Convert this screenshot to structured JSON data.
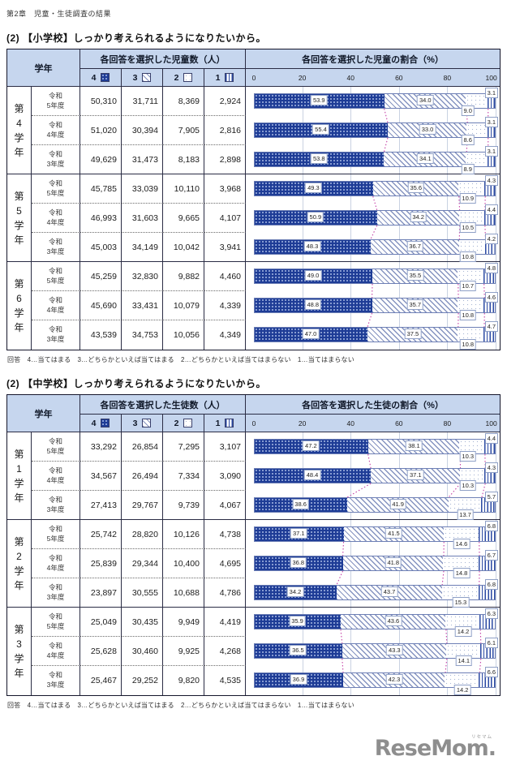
{
  "page": {
    "header": "第2章　児童・生徒調査の結果",
    "footnote": "回答　4…当てはまる　3…どちらかといえば当てはまる　2…どちらかといえば当てはまらない　1…当てはまらない",
    "logo": {
      "text": "ReseMom.",
      "ruby": "リセマム"
    }
  },
  "colors": {
    "header_bg": "#c6d6ee",
    "bar_navy": "#1e3c96",
    "connector_pink": "#c43fa6",
    "grid_line": "#c9d2e2",
    "table_border": "#15162b"
  },
  "axis_ticks": [
    "0",
    "20",
    "40",
    "60",
    "80",
    "100"
  ],
  "sections": [
    {
      "title": "(2) 【小学校】しっかり考えられるようになりたいから。",
      "grade_header": "学年",
      "count_header": "各回答を選択した児童数（人）",
      "pct_header": "各回答を選択した児童の割合（%）",
      "legend_values": [
        "4",
        "3",
        "2",
        "1"
      ],
      "groups": [
        {
          "grade": "第4学年",
          "rows": [
            {
              "year_lines": [
                "令和",
                "5年度"
              ],
              "counts": [
                "50,310",
                "31,711",
                "8,369",
                "2,924"
              ],
              "pcts": [
                53.9,
                34.0,
                9.0,
                3.1
              ]
            },
            {
              "year_lines": [
                "令和",
                "4年度"
              ],
              "counts": [
                "51,020",
                "30,394",
                "7,905",
                "2,816"
              ],
              "pcts": [
                55.4,
                33.0,
                8.6,
                3.1
              ]
            },
            {
              "year_lines": [
                "令和",
                "3年度"
              ],
              "counts": [
                "49,629",
                "31,473",
                "8,183",
                "2,898"
              ],
              "pcts": [
                53.8,
                34.1,
                8.9,
                3.1
              ]
            }
          ]
        },
        {
          "grade": "第5学年",
          "rows": [
            {
              "year_lines": [
                "令和",
                "5年度"
              ],
              "counts": [
                "45,785",
                "33,039",
                "10,110",
                "3,968"
              ],
              "pcts": [
                49.3,
                35.6,
                10.9,
                4.3
              ]
            },
            {
              "year_lines": [
                "令和",
                "4年度"
              ],
              "counts": [
                "46,993",
                "31,603",
                "9,665",
                "4,107"
              ],
              "pcts": [
                50.9,
                34.2,
                10.5,
                4.4
              ]
            },
            {
              "year_lines": [
                "令和",
                "3年度"
              ],
              "counts": [
                "45,003",
                "34,149",
                "10,042",
                "3,941"
              ],
              "pcts": [
                48.3,
                36.7,
                10.8,
                4.2
              ]
            }
          ]
        },
        {
          "grade": "第6学年",
          "rows": [
            {
              "year_lines": [
                "令和",
                "5年度"
              ],
              "counts": [
                "45,259",
                "32,830",
                "9,882",
                "4,460"
              ],
              "pcts": [
                49.0,
                35.5,
                10.7,
                4.8
              ]
            },
            {
              "year_lines": [
                "令和",
                "4年度"
              ],
              "counts": [
                "45,690",
                "33,431",
                "10,079",
                "4,339"
              ],
              "pcts": [
                48.8,
                35.7,
                10.8,
                4.6
              ]
            },
            {
              "year_lines": [
                "令和",
                "3年度"
              ],
              "counts": [
                "43,539",
                "34,753",
                "10,056",
                "4,349"
              ],
              "pcts": [
                47.0,
                37.5,
                10.8,
                4.7
              ]
            }
          ]
        }
      ]
    },
    {
      "title": "(2) 【中学校】しっかり考えられるようになりたいから。",
      "grade_header": "学年",
      "count_header": "各回答を選択した生徒数（人）",
      "pct_header": "各回答を選択した生徒の割合（%）",
      "legend_values": [
        "4",
        "3",
        "2",
        "1"
      ],
      "groups": [
        {
          "grade": "第1学年",
          "rows": [
            {
              "year_lines": [
                "令和",
                "5年度"
              ],
              "counts": [
                "33,292",
                "26,854",
                "7,295",
                "3,107"
              ],
              "pcts": [
                47.2,
                38.1,
                10.3,
                4.4
              ]
            },
            {
              "year_lines": [
                "令和",
                "4年度"
              ],
              "counts": [
                "34,567",
                "26,494",
                "7,334",
                "3,090"
              ],
              "pcts": [
                48.4,
                37.1,
                10.3,
                4.3
              ]
            },
            {
              "year_lines": [
                "令和",
                "3年度"
              ],
              "counts": [
                "27,413",
                "29,767",
                "9,739",
                "4,067"
              ],
              "pcts": [
                38.6,
                41.9,
                13.7,
                5.7
              ]
            }
          ]
        },
        {
          "grade": "第2学年",
          "rows": [
            {
              "year_lines": [
                "令和",
                "5年度"
              ],
              "counts": [
                "25,742",
                "28,820",
                "10,126",
                "4,738"
              ],
              "pcts": [
                37.1,
                41.5,
                14.6,
                6.8
              ]
            },
            {
              "year_lines": [
                "令和",
                "4年度"
              ],
              "counts": [
                "25,839",
                "29,344",
                "10,400",
                "4,695"
              ],
              "pcts": [
                36.8,
                41.8,
                14.8,
                6.7
              ]
            },
            {
              "year_lines": [
                "令和",
                "3年度"
              ],
              "counts": [
                "23,897",
                "30,555",
                "10,688",
                "4,786"
              ],
              "pcts": [
                34.2,
                43.7,
                15.3,
                6.8
              ]
            }
          ]
        },
        {
          "grade": "第3学年",
          "rows": [
            {
              "year_lines": [
                "令和",
                "5年度"
              ],
              "counts": [
                "25,049",
                "30,435",
                "9,949",
                "4,419"
              ],
              "pcts": [
                35.9,
                43.6,
                14.2,
                6.3
              ]
            },
            {
              "year_lines": [
                "令和",
                "4年度"
              ],
              "counts": [
                "25,628",
                "30,460",
                "9,925",
                "4,268"
              ],
              "pcts": [
                36.5,
                43.3,
                14.1,
                6.1
              ]
            },
            {
              "year_lines": [
                "令和",
                "3年度"
              ],
              "counts": [
                "25,467",
                "29,252",
                "9,820",
                "4,535"
              ],
              "pcts": [
                36.9,
                42.3,
                14.2,
                6.6
              ]
            }
          ]
        }
      ]
    }
  ],
  "chart_data": [
    {
      "type": "bar",
      "subtype": "horizontal-stacked",
      "title": "各回答を選択した児童の割合（%）",
      "xlabel": "割合（%）",
      "ylabel": "学年・年度",
      "xlim": [
        0,
        100
      ],
      "x_ticks": [
        0,
        20,
        40,
        60,
        80,
        100
      ],
      "legend": [
        "4…当てはまる",
        "3…どちらかといえば当てはまる",
        "2…どちらかといえば当てはまらない",
        "1…当てはまらない"
      ],
      "categories": [
        "第4学年 令和5年度",
        "第4学年 令和4年度",
        "第4学年 令和3年度",
        "第5学年 令和5年度",
        "第5学年 令和4年度",
        "第5学年 令和3年度",
        "第6学年 令和5年度",
        "第6学年 令和4年度",
        "第6学年 令和3年度"
      ],
      "series": [
        {
          "name": "4",
          "values": [
            53.9,
            55.4,
            53.8,
            49.3,
            50.9,
            48.3,
            49.0,
            48.8,
            47.0
          ]
        },
        {
          "name": "3",
          "values": [
            34.0,
            33.0,
            34.1,
            35.6,
            34.2,
            36.7,
            35.5,
            35.7,
            37.5
          ]
        },
        {
          "name": "2",
          "values": [
            9.0,
            8.6,
            8.9,
            10.9,
            10.5,
            10.8,
            10.7,
            10.8,
            10.8
          ]
        },
        {
          "name": "1",
          "values": [
            3.1,
            3.1,
            3.1,
            4.3,
            4.4,
            4.2,
            4.8,
            4.6,
            4.7
          ]
        }
      ]
    },
    {
      "type": "bar",
      "subtype": "horizontal-stacked",
      "title": "各回答を選択した生徒の割合（%）",
      "xlabel": "割合（%）",
      "ylabel": "学年・年度",
      "xlim": [
        0,
        100
      ],
      "x_ticks": [
        0,
        20,
        40,
        60,
        80,
        100
      ],
      "legend": [
        "4…当てはまる",
        "3…どちらかといえば当てはまる",
        "2…どちらかといえば当てはまらない",
        "1…当てはまらない"
      ],
      "categories": [
        "第1学年 令和5年度",
        "第1学年 令和4年度",
        "第1学年 令和3年度",
        "第2学年 令和5年度",
        "第2学年 令和4年度",
        "第2学年 令和3年度",
        "第3学年 令和5年度",
        "第3学年 令和4年度",
        "第3学年 令和3年度"
      ],
      "series": [
        {
          "name": "4",
          "values": [
            47.2,
            48.4,
            38.6,
            37.1,
            36.8,
            34.2,
            35.9,
            36.5,
            36.9
          ]
        },
        {
          "name": "3",
          "values": [
            38.1,
            37.1,
            41.9,
            41.5,
            41.8,
            43.7,
            43.6,
            43.3,
            42.3
          ]
        },
        {
          "name": "2",
          "values": [
            10.3,
            10.3,
            13.7,
            14.6,
            14.8,
            15.3,
            14.2,
            14.1,
            14.2
          ]
        },
        {
          "name": "1",
          "values": [
            4.4,
            4.3,
            5.7,
            6.8,
            6.7,
            6.8,
            6.3,
            6.1,
            6.6
          ]
        }
      ]
    }
  ]
}
